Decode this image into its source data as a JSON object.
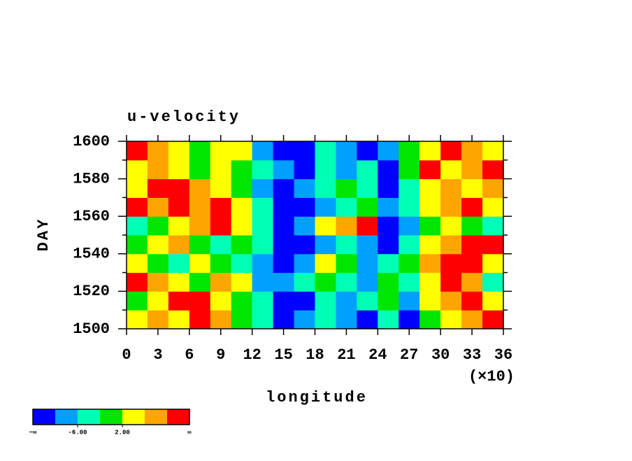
{
  "chart_data": {
    "type": "heatmap",
    "title": "u-velocity",
    "xlabel": "longitude",
    "xlabel_multiplier": "(×10)",
    "ylabel": "DAY",
    "x": [
      1,
      3,
      5,
      7,
      9,
      11,
      13,
      15,
      17,
      19,
      21,
      23,
      25,
      27,
      29,
      31,
      33,
      35
    ],
    "y": [
      1505,
      1515,
      1525,
      1535,
      1545,
      1555,
      1565,
      1575,
      1585,
      1595
    ],
    "values": [
      [
        4,
        8,
        4,
        12,
        8,
        0,
        -4,
        -12,
        -8,
        -4,
        -8,
        -12,
        -4,
        -12,
        0,
        4,
        8,
        12
      ],
      [
        0,
        4,
        12,
        12,
        4,
        0,
        -4,
        -12,
        -12,
        -4,
        -8,
        -4,
        0,
        -8,
        4,
        8,
        12,
        4
      ],
      [
        12,
        8,
        4,
        0,
        8,
        4,
        -8,
        -8,
        -4,
        0,
        -4,
        -8,
        0,
        -4,
        4,
        12,
        8,
        -4
      ],
      [
        4,
        0,
        -4,
        4,
        0,
        -4,
        -8,
        -12,
        -8,
        4,
        0,
        -8,
        -4,
        0,
        8,
        12,
        12,
        4
      ],
      [
        0,
        4,
        8,
        0,
        -4,
        0,
        -4,
        -12,
        -12,
        -8,
        -4,
        -8,
        -12,
        -4,
        4,
        8,
        12,
        12
      ],
      [
        -4,
        0,
        4,
        8,
        12,
        4,
        -4,
        -12,
        -8,
        4,
        8,
        12,
        -12,
        -8,
        0,
        4,
        0,
        -4
      ],
      [
        12,
        8,
        12,
        8,
        12,
        4,
        -4,
        -12,
        -12,
        -8,
        -4,
        0,
        -8,
        -4,
        4,
        8,
        12,
        4
      ],
      [
        4,
        12,
        12,
        8,
        4,
        0,
        -8,
        -12,
        -8,
        -4,
        0,
        -4,
        -12,
        -4,
        4,
        8,
        4,
        8
      ],
      [
        4,
        8,
        4,
        0,
        4,
        0,
        -4,
        -8,
        -12,
        -4,
        -8,
        -4,
        -12,
        0,
        12,
        4,
        8,
        12
      ],
      [
        12,
        8,
        4,
        0,
        4,
        4,
        -8,
        -12,
        -12,
        -4,
        -8,
        -12,
        -8,
        0,
        4,
        12,
        8,
        4
      ]
    ],
    "xlim": [
      0,
      36
    ],
    "xticks": [
      0,
      3,
      6,
      9,
      12,
      15,
      18,
      21,
      24,
      27,
      30,
      33,
      36
    ],
    "ylim": [
      1500,
      1600
    ],
    "yticks": [
      1500,
      1520,
      1540,
      1560,
      1580,
      1600
    ],
    "yminorticks": [
      1510,
      1530,
      1550,
      1570,
      1590
    ],
    "colorbar": {
      "colors": [
        "#0000ff",
        "#00a0ff",
        "#00ffb4",
        "#00e600",
        "#ffff00",
        "#ffa500",
        "#ff0000"
      ],
      "boundaries": [
        -10,
        -6,
        -2,
        2,
        6,
        10
      ],
      "ticks": [
        {
          "value": -6,
          "label": "-6.00"
        },
        {
          "value": 2,
          "label": "2.00"
        }
      ],
      "low_label": "−∞",
      "high_label": "∞"
    }
  }
}
